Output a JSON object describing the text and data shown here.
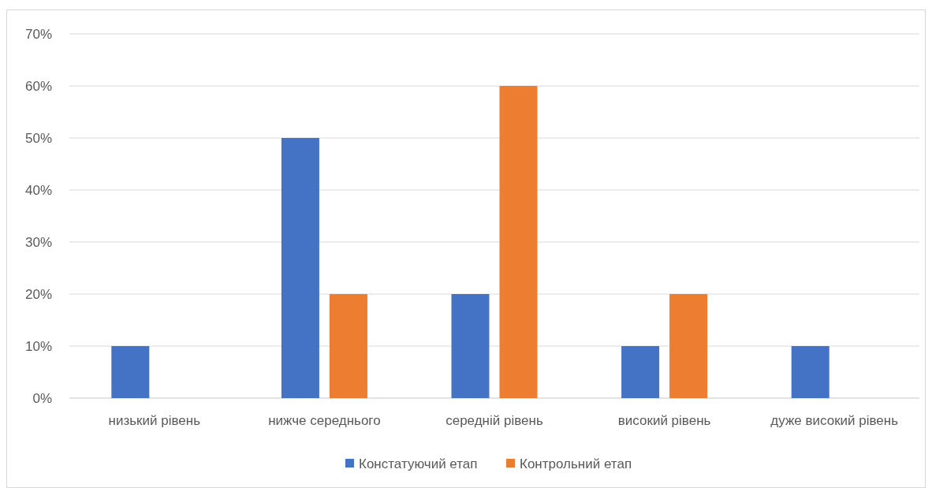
{
  "chart_data": {
    "type": "bar",
    "categories": [
      "низький рівень",
      "нижче середнього",
      "середній рівень",
      "високий рівень",
      "дуже високий рівень"
    ],
    "series": [
      {
        "name": "Констатуючий етап",
        "color": "#4472c4",
        "values": [
          10,
          50,
          20,
          10,
          10
        ]
      },
      {
        "name": "Контрольний етап",
        "color": "#ed7d31",
        "values": [
          0,
          20,
          60,
          20,
          0
        ]
      }
    ],
    "ylim": [
      0,
      70
    ],
    "yticks": [
      {
        "value": 0,
        "label": "0%"
      },
      {
        "value": 10,
        "label": "10%"
      },
      {
        "value": 20,
        "label": "20%"
      },
      {
        "value": 30,
        "label": "30%"
      },
      {
        "value": 40,
        "label": "40%"
      },
      {
        "value": 50,
        "label": "50%"
      },
      {
        "value": 60,
        "label": "60%"
      },
      {
        "value": 70,
        "label": "70%"
      }
    ],
    "grid": "y",
    "legend": "bottom"
  }
}
